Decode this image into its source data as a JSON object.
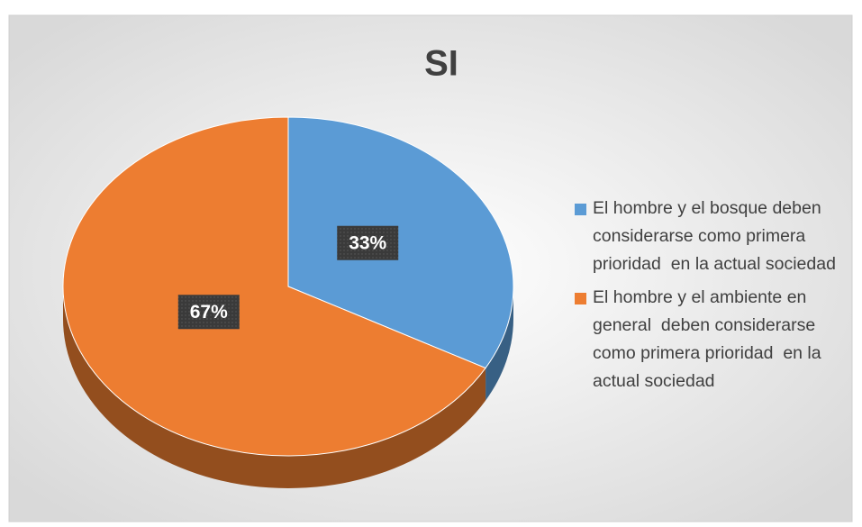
{
  "chart_data": {
    "type": "pie",
    "title": "SI",
    "categories": [
      "El hombre y el bosque deben considerarse como primera prioridad  en la actual sociedad",
      "El hombre y el ambiente en general  deben considerarse como primera prioridad  en la actual sociedad"
    ],
    "values": [
      33,
      67
    ],
    "value_labels": [
      "33%",
      "67%"
    ],
    "colors": [
      "#5b9bd5",
      "#ed7d31"
    ],
    "legend": "right"
  }
}
